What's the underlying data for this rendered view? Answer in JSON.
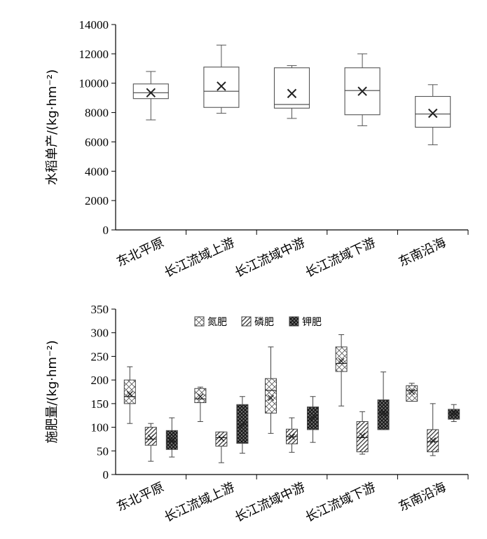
{
  "chart_data": [
    {
      "type": "box",
      "ylabel": "水稻单产/(kg·hm⁻²)",
      "yticks": [
        "0",
        "2000",
        "4000",
        "6000",
        "8000",
        "10000",
        "12000",
        "14000"
      ],
      "ylim": [
        0,
        14000
      ],
      "categories": [
        "东北平原",
        "长江流域上游",
        "长江流域中游",
        "长江流域下游",
        "东南沿海"
      ],
      "boxes": [
        {
          "min": 7500,
          "q1": 8950,
          "median": 9350,
          "q3": 9950,
          "max": 10800,
          "mean": 9350
        },
        {
          "min": 7950,
          "q1": 8350,
          "median": 9450,
          "q3": 11100,
          "max": 12600,
          "mean": 9800
        },
        {
          "min": 7600,
          "q1": 8300,
          "median": 8550,
          "q3": 11050,
          "max": 11200,
          "mean": 9300
        },
        {
          "min": 7100,
          "q1": 7850,
          "median": 9500,
          "q3": 11050,
          "max": 12000,
          "mean": 9450
        },
        {
          "min": 5800,
          "q1": 7000,
          "median": 7900,
          "q3": 9100,
          "max": 9900,
          "mean": 7950
        }
      ]
    },
    {
      "type": "box",
      "ylabel": "施肥量/(kg·hm⁻²)",
      "yticks": [
        "0",
        "50",
        "100",
        "150",
        "200",
        "250",
        "300",
        "350"
      ],
      "ylim": [
        0,
        350
      ],
      "categories": [
        "东北平原",
        "长江流域上游",
        "长江流域中游",
        "长江流域下游",
        "东南沿海"
      ],
      "legend": [
        "氮肥",
        "磷肥",
        "钾肥"
      ],
      "legend_position": "top-center",
      "series": [
        {
          "name": "氮肥",
          "boxes": [
            {
              "min": 108,
              "q1": 150,
              "median": 165,
              "q3": 200,
              "max": 228,
              "mean": 170
            },
            {
              "min": 112,
              "q1": 152,
              "median": 160,
              "q3": 182,
              "max": 185,
              "mean": 165
            },
            {
              "min": 87,
              "q1": 130,
              "median": 178,
              "q3": 203,
              "max": 270,
              "mean": 162
            },
            {
              "min": 145,
              "q1": 218,
              "median": 235,
              "q3": 270,
              "max": 296,
              "mean": 240
            },
            {
              "min": 155,
              "q1": 155,
              "median": 178,
              "q3": 188,
              "max": 193,
              "mean": 175
            }
          ]
        },
        {
          "name": "磷肥",
          "boxes": [
            {
              "min": 28,
              "q1": 62,
              "median": 75,
              "q3": 100,
              "max": 108,
              "mean": 78
            },
            {
              "min": 25,
              "q1": 60,
              "median": 78,
              "q3": 90,
              "max": 90,
              "mean": 76
            },
            {
              "min": 47,
              "q1": 65,
              "median": 80,
              "q3": 96,
              "max": 120,
              "mean": 80
            },
            {
              "min": 43,
              "q1": 48,
              "median": 78,
              "q3": 112,
              "max": 133,
              "mean": 82
            },
            {
              "min": 40,
              "q1": 48,
              "median": 70,
              "q3": 95,
              "max": 150,
              "mean": 72
            }
          ]
        },
        {
          "name": "钾肥",
          "boxes": [
            {
              "min": 37,
              "q1": 53,
              "median": 70,
              "q3": 93,
              "max": 120,
              "mean": 72
            },
            {
              "min": 45,
              "q1": 66,
              "median": 105,
              "q3": 148,
              "max": 165,
              "mean": 105
            },
            {
              "min": 68,
              "q1": 95,
              "median": 120,
              "q3": 143,
              "max": 165,
              "mean": 120
            },
            {
              "min": 95,
              "q1": 95,
              "median": 130,
              "q3": 158,
              "max": 217,
              "mean": 130
            },
            {
              "min": 112,
              "q1": 117,
              "median": 130,
              "q3": 138,
              "max": 148,
              "mean": 130
            }
          ]
        }
      ]
    }
  ]
}
